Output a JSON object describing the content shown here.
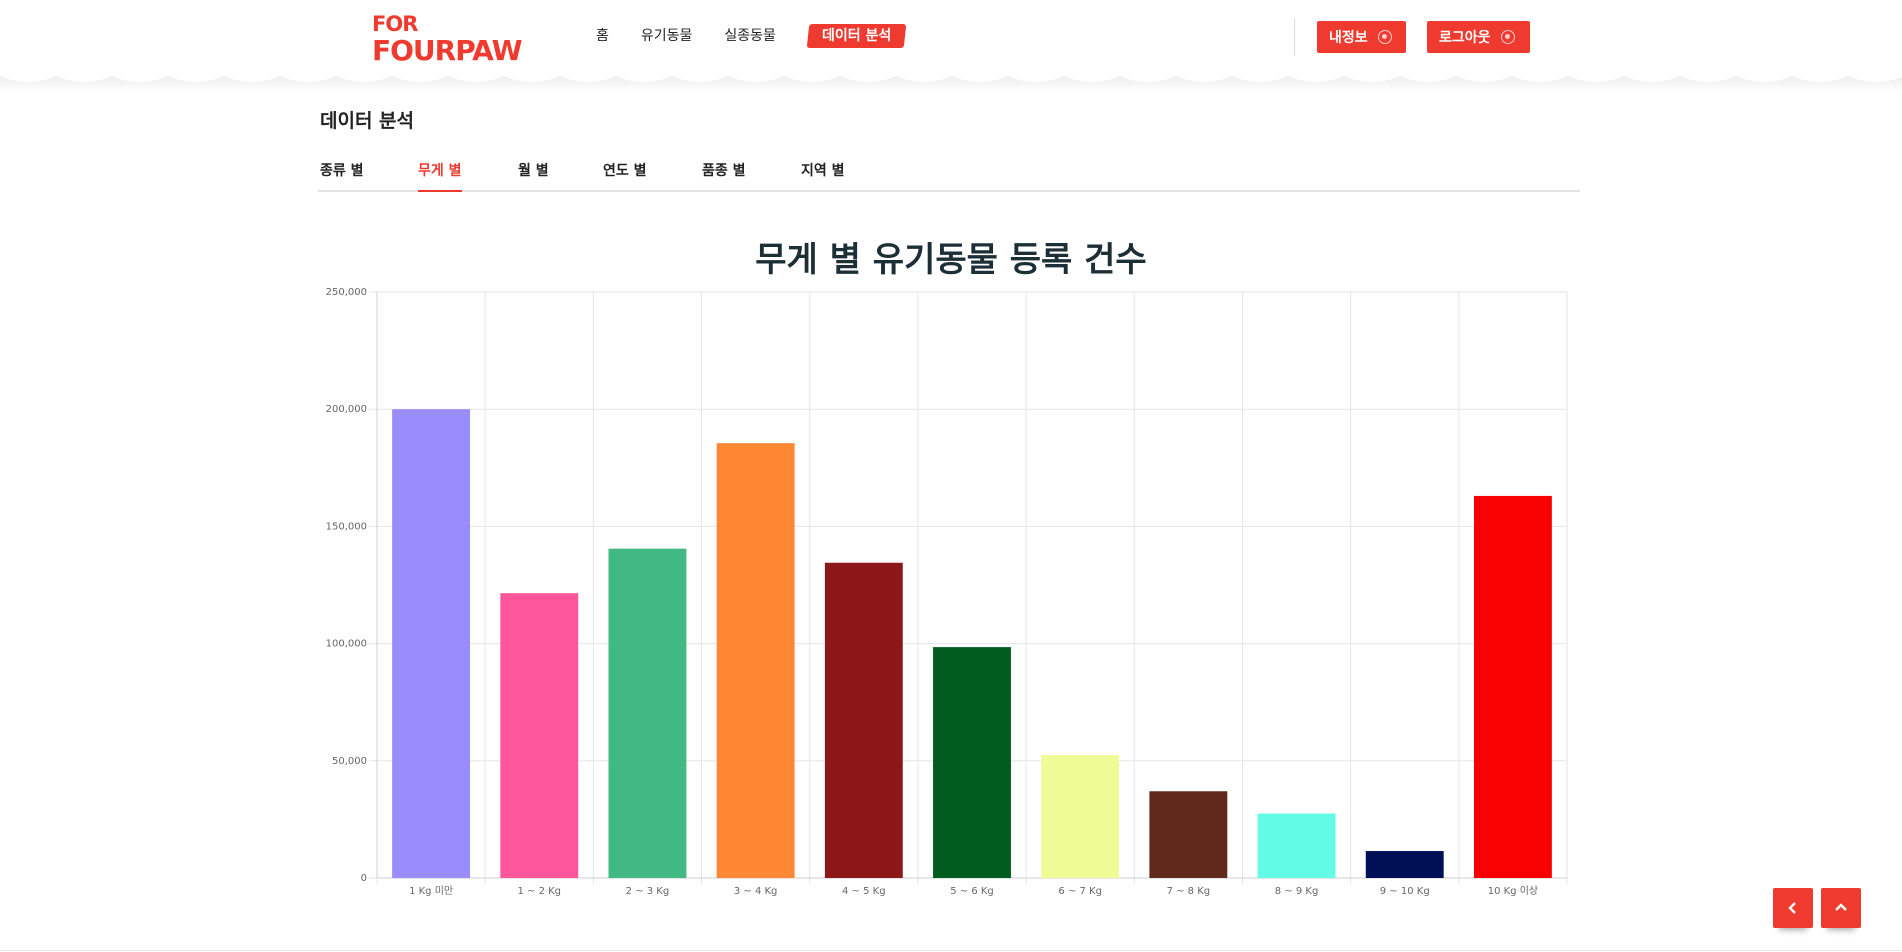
{
  "logo": {
    "line1": "FOR",
    "line2": "FOURPAW"
  },
  "nav": {
    "items": [
      "홈",
      "유기동물",
      "실종동물"
    ],
    "active": "데이터 분석"
  },
  "header_buttons": {
    "myinfo": "내정보",
    "logout": "로그아웃"
  },
  "page": {
    "title": "데이터 분석"
  },
  "tabs": [
    "종류 별",
    "무게 별",
    "월 별",
    "연도 별",
    "품종 별",
    "지역 별"
  ],
  "active_tab": "무게 별",
  "colors": {
    "accent": "#ef3b2f",
    "title": "#1d2f36"
  },
  "icons": {
    "back": "chevron-left-icon",
    "top": "chevron-up-icon",
    "paw": "paw-icon"
  },
  "chart_data": {
    "type": "bar",
    "title": "무게 별 유기동물 등록 건수",
    "categories": [
      "1 Kg 미만",
      "1 ~ 2 Kg",
      "2 ~ 3 Kg",
      "3 ~ 4 Kg",
      "4 ~ 5 Kg",
      "5 ~ 6 Kg",
      "6 ~ 7 Kg",
      "7 ~ 8 Kg",
      "8 ~ 9 Kg",
      "9 ~ 10 Kg",
      "10 Kg 이상"
    ],
    "values": [
      200000,
      121500,
      140500,
      185500,
      134500,
      98500,
      52500,
      37000,
      27500,
      11500,
      163000
    ],
    "colors": [
      "#9b8cfc",
      "#fe569a",
      "#42b883",
      "#fe8734",
      "#8b1718",
      "#005b1f",
      "#eefc97",
      "#60291b",
      "#64fbe6",
      "#010f56",
      "#f80102"
    ],
    "ylim": [
      0,
      250000
    ],
    "yticks": [
      "0",
      "50,000",
      "100,000",
      "150,000",
      "200,000",
      "250,000"
    ],
    "xlabel": "",
    "ylabel": "",
    "grid": true,
    "legend": "none"
  }
}
